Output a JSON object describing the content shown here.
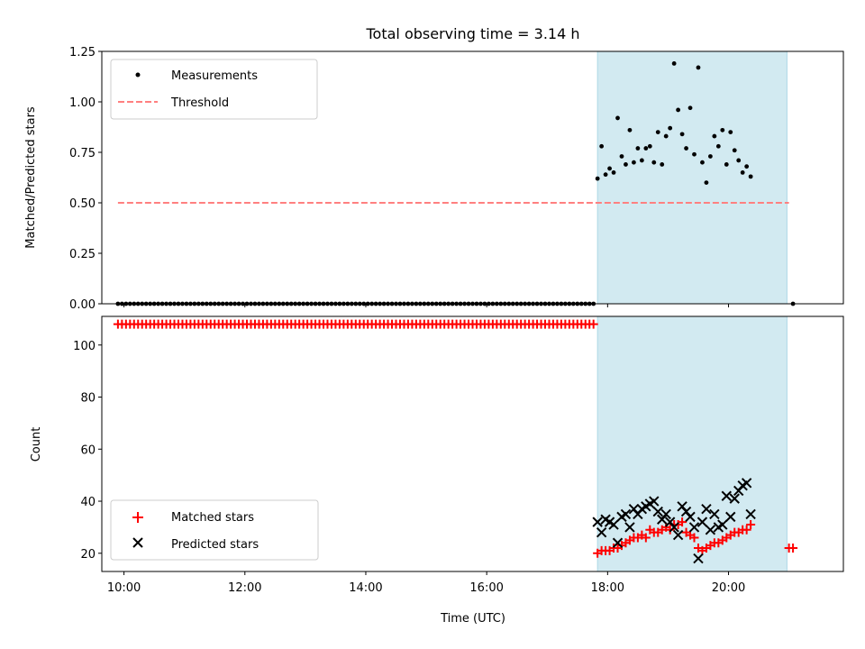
{
  "chart_data": [
    {
      "type": "scatter",
      "title": "Total observing time = 3.14 h",
      "ylabel": "Matched/Predicted stars",
      "xlabel": "",
      "xlim": [
        "09:38",
        "21:54"
      ],
      "ylim": [
        0,
        1.25
      ],
      "yticks": [
        0.0,
        0.25,
        0.5,
        0.75,
        1.0,
        1.25
      ],
      "ytick_labels": [
        "0.00",
        "0.25",
        "0.50",
        "0.75",
        "1.00",
        "1.25"
      ],
      "grid": false,
      "legend": "top-left",
      "shaded_interval": [
        "17:50",
        "20:58"
      ],
      "series": [
        {
          "name": "Measurements",
          "marker": "dot",
          "color": "#000000",
          "zero_run": {
            "start": "09:54",
            "end": "17:46",
            "step_min": 4,
            "value": 0
          },
          "points": [
            [
              "17:50",
              0.62
            ],
            [
              "17:54",
              0.78
            ],
            [
              "17:58",
              0.64
            ],
            [
              "18:02",
              0.67
            ],
            [
              "18:06",
              0.65
            ],
            [
              "18:10",
              0.92
            ],
            [
              "18:14",
              0.73
            ],
            [
              "18:18",
              0.69
            ],
            [
              "18:22",
              0.86
            ],
            [
              "18:26",
              0.7
            ],
            [
              "18:30",
              0.77
            ],
            [
              "18:34",
              0.71
            ],
            [
              "18:38",
              0.77
            ],
            [
              "18:42",
              0.78
            ],
            [
              "18:46",
              0.7
            ],
            [
              "18:50",
              0.85
            ],
            [
              "18:54",
              0.69
            ],
            [
              "18:58",
              0.83
            ],
            [
              "19:02",
              0.87
            ],
            [
              "19:06",
              1.19
            ],
            [
              "19:10",
              0.96
            ],
            [
              "19:14",
              0.84
            ],
            [
              "19:18",
              0.77
            ],
            [
              "19:22",
              0.97
            ],
            [
              "19:26",
              0.74
            ],
            [
              "19:30",
              1.17
            ],
            [
              "19:34",
              0.7
            ],
            [
              "19:38",
              0.6
            ],
            [
              "19:42",
              0.73
            ],
            [
              "19:46",
              0.83
            ],
            [
              "19:50",
              0.78
            ],
            [
              "19:54",
              0.86
            ],
            [
              "19:58",
              0.69
            ],
            [
              "20:02",
              0.85
            ],
            [
              "20:06",
              0.76
            ],
            [
              "20:10",
              0.71
            ],
            [
              "20:14",
              0.65
            ],
            [
              "20:18",
              0.68
            ],
            [
              "20:22",
              0.63
            ],
            [
              "21:04",
              0.0
            ]
          ]
        },
        {
          "name": "Threshold",
          "type": "line",
          "style": "dashed",
          "color": "#ff8080",
          "x": [
            "09:54",
            "21:00"
          ],
          "y": [
            0.5,
            0.5
          ]
        }
      ]
    },
    {
      "type": "scatter",
      "title": "",
      "xlabel": "Time (UTC)",
      "ylabel": "Count",
      "xlim": [
        "09:38",
        "21:54"
      ],
      "ylim": [
        13,
        111
      ],
      "xticks": [
        "10:00",
        "12:00",
        "14:00",
        "16:00",
        "18:00",
        "20:00"
      ],
      "yticks": [
        20,
        40,
        60,
        80,
        100
      ],
      "ytick_labels": [
        "20",
        "40",
        "60",
        "80",
        "100"
      ],
      "grid": false,
      "legend": "bottom-left",
      "shaded_interval": [
        "17:50",
        "20:58"
      ],
      "series": [
        {
          "name": "Matched stars",
          "marker": "plus",
          "color": "#ff0000",
          "constant_run": {
            "start": "09:54",
            "end": "17:46",
            "step_min": 4,
            "value": 108
          },
          "points": [
            [
              "17:50",
              20
            ],
            [
              "17:54",
              21
            ],
            [
              "17:58",
              21
            ],
            [
              "18:02",
              21
            ],
            [
              "18:06",
              22
            ],
            [
              "18:10",
              22
            ],
            [
              "18:14",
              23
            ],
            [
              "18:18",
              24
            ],
            [
              "18:22",
              25
            ],
            [
              "18:26",
              26
            ],
            [
              "18:30",
              26
            ],
            [
              "18:34",
              27
            ],
            [
              "18:38",
              26
            ],
            [
              "18:42",
              29
            ],
            [
              "18:46",
              28
            ],
            [
              "18:50",
              28
            ],
            [
              "18:54",
              29
            ],
            [
              "18:58",
              30
            ],
            [
              "19:02",
              29
            ],
            [
              "19:06",
              31
            ],
            [
              "19:10",
              31
            ],
            [
              "19:14",
              32
            ],
            [
              "19:18",
              28
            ],
            [
              "19:22",
              27
            ],
            [
              "19:26",
              26
            ],
            [
              "19:30",
              22
            ],
            [
              "19:34",
              21
            ],
            [
              "19:38",
              22
            ],
            [
              "19:42",
              23
            ],
            [
              "19:46",
              24
            ],
            [
              "19:50",
              24
            ],
            [
              "19:54",
              25
            ],
            [
              "19:58",
              26
            ],
            [
              "20:02",
              27
            ],
            [
              "20:06",
              28
            ],
            [
              "20:10",
              28
            ],
            [
              "20:14",
              29
            ],
            [
              "20:18",
              29
            ],
            [
              "20:22",
              31
            ],
            [
              "21:00",
              22
            ],
            [
              "21:04",
              22
            ]
          ]
        },
        {
          "name": "Predicted stars",
          "marker": "x",
          "color": "#000000",
          "points": [
            [
              "17:50",
              32
            ],
            [
              "17:54",
              28
            ],
            [
              "17:58",
              33
            ],
            [
              "18:02",
              32
            ],
            [
              "18:06",
              31
            ],
            [
              "18:10",
              24
            ],
            [
              "18:14",
              34
            ],
            [
              "18:18",
              35
            ],
            [
              "18:22",
              30
            ],
            [
              "18:26",
              37
            ],
            [
              "18:30",
              35
            ],
            [
              "18:34",
              37
            ],
            [
              "18:38",
              38
            ],
            [
              "18:42",
              39
            ],
            [
              "18:46",
              40
            ],
            [
              "18:50",
              36
            ],
            [
              "18:54",
              33
            ],
            [
              "18:58",
              35
            ],
            [
              "19:02",
              32
            ],
            [
              "19:06",
              30
            ],
            [
              "19:10",
              27
            ],
            [
              "19:14",
              38
            ],
            [
              "19:18",
              36
            ],
            [
              "19:22",
              34
            ],
            [
              "19:26",
              30
            ],
            [
              "19:30",
              18
            ],
            [
              "19:34",
              32
            ],
            [
              "19:38",
              37
            ],
            [
              "19:42",
              29
            ],
            [
              "19:46",
              35
            ],
            [
              "19:50",
              30
            ],
            [
              "19:54",
              31
            ],
            [
              "19:58",
              42
            ],
            [
              "20:02",
              34
            ],
            [
              "20:06",
              41
            ],
            [
              "20:10",
              44
            ],
            [
              "20:14",
              46
            ],
            [
              "20:18",
              47
            ],
            [
              "20:22",
              35
            ]
          ]
        }
      ]
    }
  ]
}
